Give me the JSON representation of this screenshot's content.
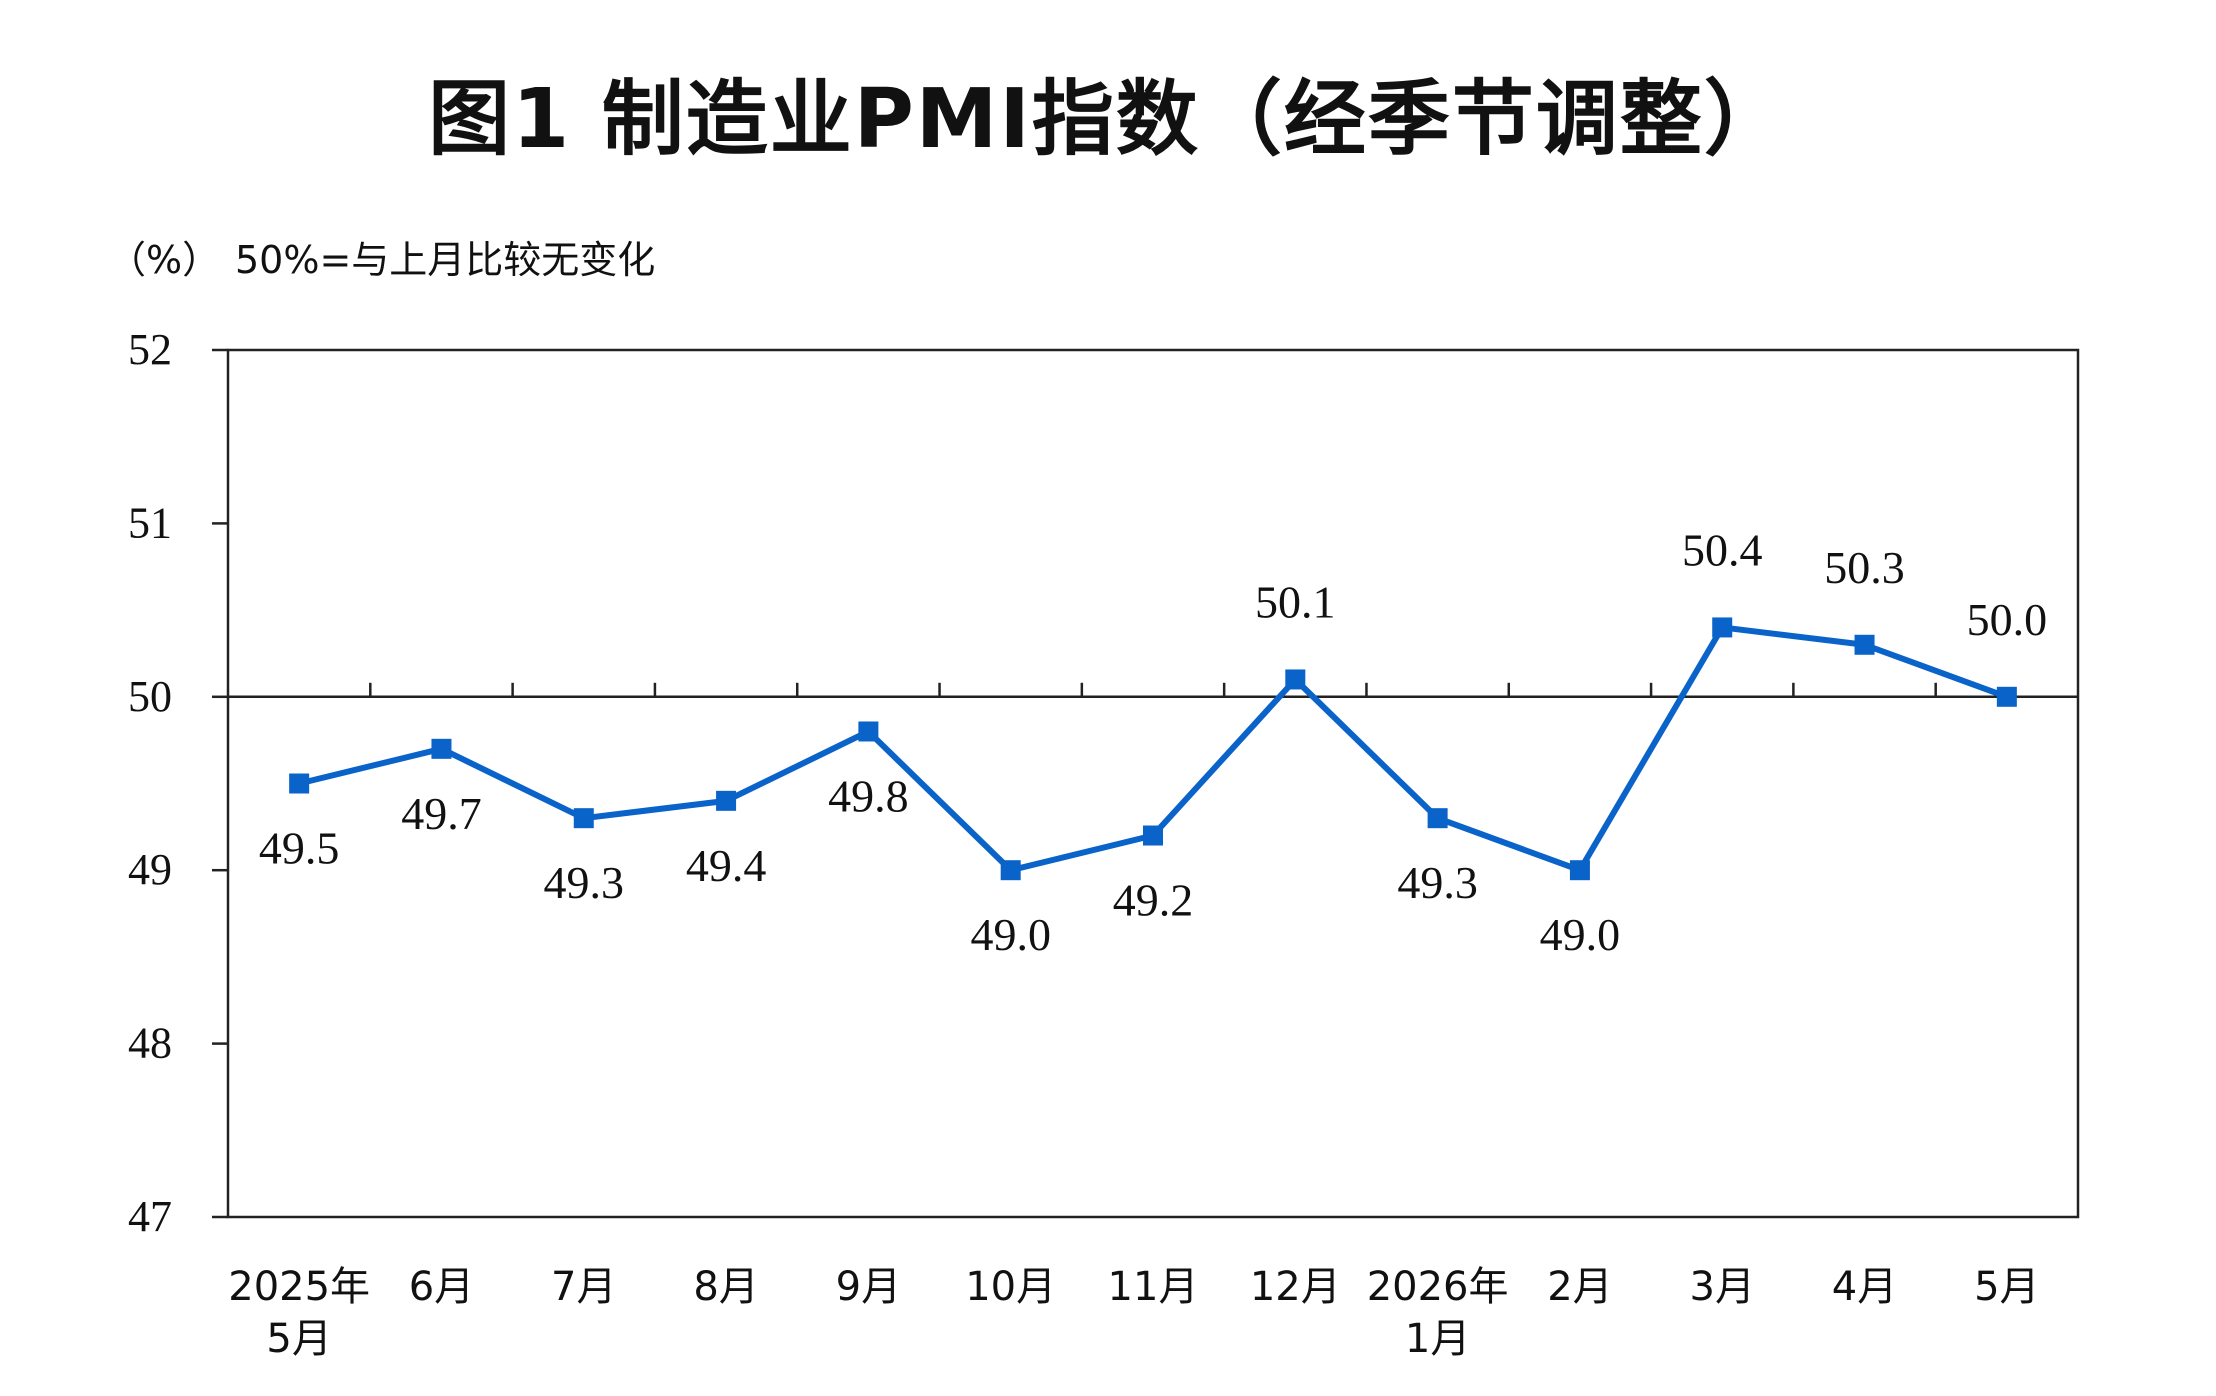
{
  "title": "图1 制造业PMI指数（经季节调整）",
  "unit_label": "（%）",
  "note": "50%=与上月比较无变化",
  "colors": {
    "series": "#0a63c9",
    "axis": "#222222"
  },
  "chart_data": {
    "type": "line",
    "title": "图1 制造业PMI指数（经季节调整）",
    "ylabel": "（%）",
    "annotation": "50%=与上月比较无变化",
    "ylim": [
      47,
      52
    ],
    "yticks": [
      47,
      48,
      49,
      50,
      51,
      52
    ],
    "reference_line": 50,
    "grid": false,
    "categories": [
      [
        "2025年",
        "5月"
      ],
      [
        "6月"
      ],
      [
        "7月"
      ],
      [
        "8月"
      ],
      [
        "9月"
      ],
      [
        "10月"
      ],
      [
        "11月"
      ],
      [
        "12月"
      ],
      [
        "2026年",
        "1月"
      ],
      [
        "2月"
      ],
      [
        "3月"
      ],
      [
        "4月"
      ],
      [
        "5月"
      ]
    ],
    "series": [
      {
        "values": [
          49.5,
          49.7,
          49.3,
          49.4,
          49.8,
          49.0,
          49.2,
          50.1,
          49.3,
          49.0,
          50.4,
          50.3,
          50.0
        ],
        "labels": [
          "49.5",
          "49.7",
          "49.3",
          "49.4",
          "49.8",
          "49.0",
          "49.2",
          "50.1",
          "49.3",
          "49.0",
          "50.4",
          "50.3",
          "50.0"
        ]
      }
    ]
  }
}
